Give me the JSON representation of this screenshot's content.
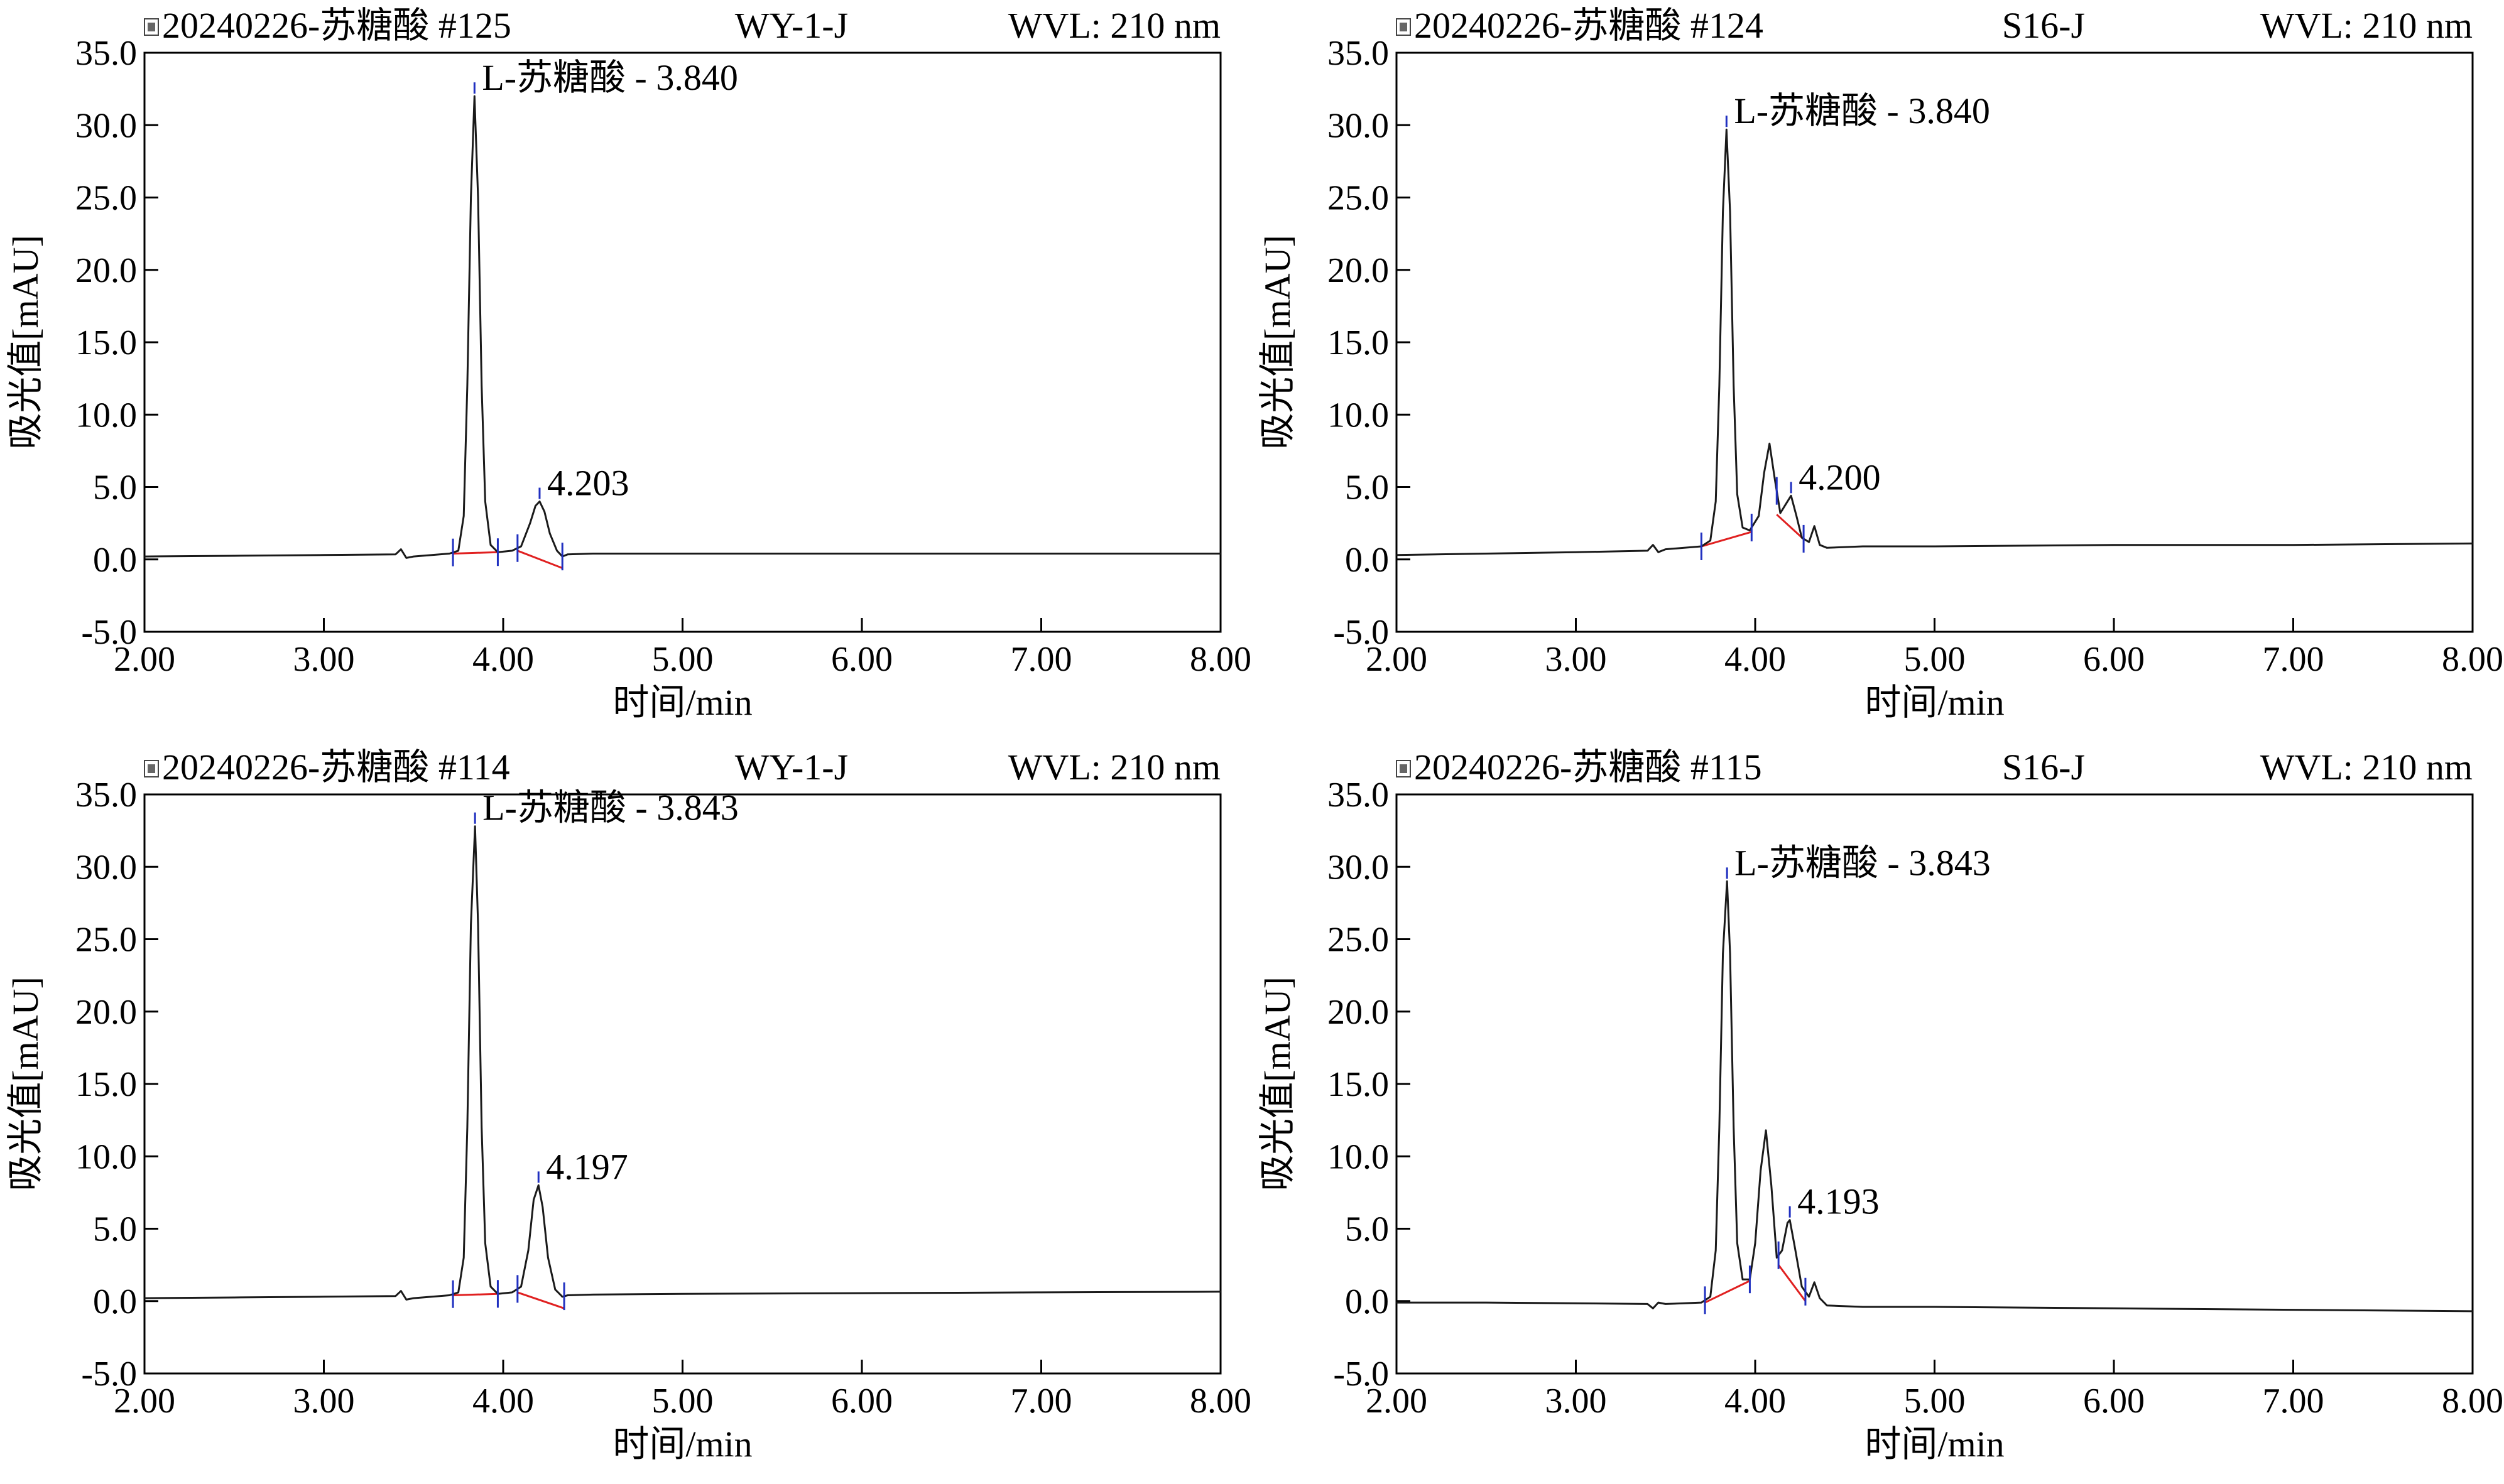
{
  "figure": {
    "panels": [
      {
        "header": {
          "run": "20240226-苏糖酸 #125",
          "sample": "WY-1-J",
          "wavelength": "WVL: 210 nm"
        },
        "peak_labels": [
          {
            "text": "L-苏糖酸 - 3.840",
            "time": 3.84,
            "height": 32.0
          },
          {
            "text": "4.203",
            "time": 4.203,
            "height": 4.0
          }
        ]
      },
      {
        "header": {
          "run": "20240226-苏糖酸 #124",
          "sample": "S16-J",
          "wavelength": "WVL: 210 nm"
        },
        "peak_labels": [
          {
            "text": "L-苏糖酸 - 3.840",
            "time": 3.84,
            "height": 29.7
          },
          {
            "text": "4.200",
            "time": 4.2,
            "height": 4.4
          }
        ]
      },
      {
        "header": {
          "run": "20240226-苏糖酸 #114",
          "sample": "WY-1-J",
          "wavelength": "WVL: 210 nm"
        },
        "peak_labels": [
          {
            "text": "L-苏糖酸 - 3.843",
            "time": 3.843,
            "height": 32.8
          },
          {
            "text": "4.197",
            "time": 4.197,
            "height": 8.0
          }
        ]
      },
      {
        "header": {
          "run": "20240226-苏糖酸 #115",
          "sample": "S16-J",
          "wavelength": "WVL: 210 nm"
        },
        "peak_labels": [
          {
            "text": "L-苏糖酸 - 3.843",
            "time": 3.843,
            "height": 29.0
          },
          {
            "text": "4.193",
            "time": 4.193,
            "height": 5.6
          }
        ]
      }
    ]
  },
  "chart_data": [
    {
      "type": "line",
      "title": "20240226-苏糖酸 #125",
      "subtitle": "WY-1-J",
      "annotation": "WVL: 210 nm",
      "xlabel": "时间/min",
      "ylabel": "吸光值[mAU]",
      "xlim": [
        2.0,
        8.0
      ],
      "ylim": [
        -5.0,
        35.0
      ],
      "xticks": [
        "2.00",
        "3.00",
        "4.00",
        "5.00",
        "6.00",
        "7.00",
        "8.00"
      ],
      "yticks": [
        "-5.0",
        "0.0",
        "5.0",
        "10.0",
        "15.0",
        "20.0",
        "25.0",
        "30.0",
        "35.0"
      ],
      "grid": false,
      "colors": {
        "trace": "#1a1a1a",
        "baseline": "#e02020",
        "marker": "#2030c0"
      },
      "series": [
        {
          "values": [
            [
              2.0,
              0.2
            ],
            [
              2.5,
              0.25
            ],
            [
              3.0,
              0.3
            ],
            [
              3.4,
              0.35
            ],
            [
              3.43,
              0.7
            ],
            [
              3.46,
              0.1
            ],
            [
              3.5,
              0.2
            ],
            [
              3.7,
              0.4
            ],
            [
              3.75,
              0.6
            ],
            [
              3.78,
              3.0
            ],
            [
              3.8,
              12.0
            ],
            [
              3.82,
              25.0
            ],
            [
              3.84,
              32.0
            ],
            [
              3.86,
              25.0
            ],
            [
              3.88,
              12.0
            ],
            [
              3.9,
              4.0
            ],
            [
              3.93,
              1.0
            ],
            [
              3.97,
              0.5
            ],
            [
              4.05,
              0.6
            ],
            [
              4.1,
              0.9
            ],
            [
              4.15,
              2.5
            ],
            [
              4.18,
              3.7
            ],
            [
              4.203,
              4.0
            ],
            [
              4.23,
              3.3
            ],
            [
              4.26,
              1.8
            ],
            [
              4.3,
              0.6
            ],
            [
              4.33,
              0.2
            ],
            [
              4.36,
              0.35
            ],
            [
              4.5,
              0.4
            ],
            [
              5.0,
              0.4
            ],
            [
              6.0,
              0.4
            ],
            [
              7.0,
              0.4
            ],
            [
              8.0,
              0.4
            ]
          ]
        }
      ],
      "peaks": [
        {
          "label": "L-苏糖酸 - 3.840",
          "time": 3.84,
          "height": 32.0
        },
        {
          "label": "4.203",
          "time": 4.203,
          "height": 4.0
        }
      ],
      "baseline_segments": [
        {
          "start": [
            3.72,
            0.4
          ],
          "end": [
            3.97,
            0.5
          ]
        },
        {
          "start": [
            4.08,
            0.6
          ],
          "end": [
            4.33,
            -0.6
          ]
        }
      ],
      "markers": [
        3.72,
        3.97,
        4.08,
        4.33
      ]
    },
    {
      "type": "line",
      "title": "20240226-苏糖酸 #124",
      "subtitle": "S16-J",
      "annotation": "WVL: 210 nm",
      "xlabel": "时间/min",
      "ylabel": "吸光值[mAU]",
      "xlim": [
        2.0,
        8.0
      ],
      "ylim": [
        -5.0,
        35.0
      ],
      "xticks": [
        "2.00",
        "3.00",
        "4.00",
        "5.00",
        "6.00",
        "7.00",
        "8.00"
      ],
      "yticks": [
        "-5.0",
        "0.0",
        "5.0",
        "10.0",
        "15.0",
        "20.0",
        "25.0",
        "30.0",
        "35.0"
      ],
      "grid": false,
      "colors": {
        "trace": "#1a1a1a",
        "baseline": "#e02020",
        "marker": "#2030c0"
      },
      "series": [
        {
          "values": [
            [
              2.0,
              0.3
            ],
            [
              2.5,
              0.4
            ],
            [
              3.0,
              0.5
            ],
            [
              3.4,
              0.6
            ],
            [
              3.43,
              1.0
            ],
            [
              3.46,
              0.5
            ],
            [
              3.5,
              0.7
            ],
            [
              3.7,
              0.9
            ],
            [
              3.75,
              1.3
            ],
            [
              3.78,
              4.0
            ],
            [
              3.8,
              12.0
            ],
            [
              3.82,
              24.0
            ],
            [
              3.84,
              29.7
            ],
            [
              3.86,
              24.0
            ],
            [
              3.88,
              12.0
            ],
            [
              3.9,
              4.5
            ],
            [
              3.93,
              2.2
            ],
            [
              3.97,
              2.0
            ],
            [
              4.02,
              3.0
            ],
            [
              4.05,
              6.0
            ],
            [
              4.08,
              8.0
            ],
            [
              4.11,
              5.5
            ],
            [
              4.14,
              3.2
            ],
            [
              4.17,
              3.8
            ],
            [
              4.2,
              4.4
            ],
            [
              4.23,
              3.0
            ],
            [
              4.26,
              1.5
            ],
            [
              4.3,
              1.2
            ],
            [
              4.33,
              2.3
            ],
            [
              4.36,
              1.0
            ],
            [
              4.4,
              0.8
            ],
            [
              4.6,
              0.9
            ],
            [
              5.0,
              0.9
            ],
            [
              6.0,
              1.0
            ],
            [
              7.0,
              1.0
            ],
            [
              8.0,
              1.1
            ]
          ]
        }
      ],
      "peaks": [
        {
          "label": "L-苏糖酸 - 3.840",
          "time": 3.84,
          "height": 29.7
        },
        {
          "label": "4.200",
          "time": 4.2,
          "height": 4.4
        }
      ],
      "baseline_segments": [
        {
          "start": [
            3.7,
            0.9
          ],
          "end": [
            3.98,
            1.9
          ]
        },
        {
          "start": [
            4.12,
            3.1
          ],
          "end": [
            4.27,
            1.4
          ]
        }
      ],
      "markers": [
        3.7,
        3.98,
        4.12,
        4.27
      ]
    },
    {
      "type": "line",
      "title": "20240226-苏糖酸 #114",
      "subtitle": "WY-1-J",
      "annotation": "WVL: 210 nm",
      "xlabel": "时间/min",
      "ylabel": "吸光值[mAU]",
      "xlim": [
        2.0,
        8.0
      ],
      "ylim": [
        -5.0,
        35.0
      ],
      "xticks": [
        "2.00",
        "3.00",
        "4.00",
        "5.00",
        "6.00",
        "7.00",
        "8.00"
      ],
      "yticks": [
        "-5.0",
        "0.0",
        "5.0",
        "10.0",
        "15.0",
        "20.0",
        "25.0",
        "30.0",
        "35.0"
      ],
      "grid": false,
      "colors": {
        "trace": "#1a1a1a",
        "baseline": "#e02020",
        "marker": "#2030c0"
      },
      "series": [
        {
          "values": [
            [
              2.0,
              0.2
            ],
            [
              2.5,
              0.25
            ],
            [
              3.0,
              0.3
            ],
            [
              3.4,
              0.35
            ],
            [
              3.43,
              0.7
            ],
            [
              3.46,
              0.1
            ],
            [
              3.5,
              0.2
            ],
            [
              3.7,
              0.4
            ],
            [
              3.75,
              0.6
            ],
            [
              3.78,
              3.0
            ],
            [
              3.8,
              12.0
            ],
            [
              3.82,
              26.0
            ],
            [
              3.843,
              32.8
            ],
            [
              3.86,
              26.0
            ],
            [
              3.88,
              12.0
            ],
            [
              3.9,
              4.0
            ],
            [
              3.93,
              1.0
            ],
            [
              3.97,
              0.5
            ],
            [
              4.05,
              0.6
            ],
            [
              4.1,
              1.0
            ],
            [
              4.14,
              3.5
            ],
            [
              4.17,
              7.0
            ],
            [
              4.197,
              8.0
            ],
            [
              4.22,
              6.5
            ],
            [
              4.25,
              3.0
            ],
            [
              4.29,
              0.8
            ],
            [
              4.33,
              0.3
            ],
            [
              4.36,
              0.4
            ],
            [
              4.5,
              0.45
            ],
            [
              5.0,
              0.5
            ],
            [
              6.0,
              0.55
            ],
            [
              7.0,
              0.6
            ],
            [
              8.0,
              0.65
            ]
          ]
        }
      ],
      "peaks": [
        {
          "label": "L-苏糖酸 - 3.843",
          "time": 3.843,
          "height": 32.8
        },
        {
          "label": "4.197",
          "time": 4.197,
          "height": 8.0
        }
      ],
      "baseline_segments": [
        {
          "start": [
            3.72,
            0.4
          ],
          "end": [
            3.97,
            0.5
          ]
        },
        {
          "start": [
            4.08,
            0.6
          ],
          "end": [
            4.34,
            -0.5
          ]
        }
      ],
      "markers": [
        3.72,
        3.97,
        4.08,
        4.34
      ]
    },
    {
      "type": "line",
      "title": "20240226-苏糖酸 #115",
      "subtitle": "S16-J",
      "annotation": "WVL: 210 nm",
      "xlabel": "时间/min",
      "ylabel": "吸光值[mAU]",
      "xlim": [
        2.0,
        8.0
      ],
      "ylim": [
        -5.0,
        35.0
      ],
      "xticks": [
        "2.00",
        "3.00",
        "4.00",
        "5.00",
        "6.00",
        "7.00",
        "8.00"
      ],
      "yticks": [
        "-5.0",
        "0.0",
        "5.0",
        "10.0",
        "15.0",
        "20.0",
        "25.0",
        "30.0",
        "35.0"
      ],
      "grid": false,
      "colors": {
        "trace": "#1a1a1a",
        "baseline": "#e02020",
        "marker": "#2030c0"
      },
      "series": [
        {
          "values": [
            [
              2.0,
              -0.1
            ],
            [
              2.5,
              -0.1
            ],
            [
              3.0,
              -0.15
            ],
            [
              3.4,
              -0.2
            ],
            [
              3.43,
              -0.5
            ],
            [
              3.46,
              -0.1
            ],
            [
              3.5,
              -0.2
            ],
            [
              3.7,
              -0.1
            ],
            [
              3.75,
              0.3
            ],
            [
              3.78,
              3.5
            ],
            [
              3.8,
              12.0
            ],
            [
              3.82,
              24.0
            ],
            [
              3.843,
              29.0
            ],
            [
              3.86,
              24.0
            ],
            [
              3.88,
              12.0
            ],
            [
              3.9,
              4.0
            ],
            [
              3.93,
              1.5
            ],
            [
              3.97,
              1.5
            ],
            [
              4.0,
              4.0
            ],
            [
              4.03,
              9.0
            ],
            [
              4.06,
              11.8
            ],
            [
              4.09,
              8.0
            ],
            [
              4.12,
              3.0
            ],
            [
              4.15,
              3.5
            ],
            [
              4.18,
              5.4
            ],
            [
              4.193,
              5.6
            ],
            [
              4.22,
              3.8
            ],
            [
              4.26,
              1.0
            ],
            [
              4.3,
              0.3
            ],
            [
              4.33,
              1.3
            ],
            [
              4.36,
              0.2
            ],
            [
              4.4,
              -0.3
            ],
            [
              4.6,
              -0.4
            ],
            [
              5.0,
              -0.4
            ],
            [
              6.0,
              -0.5
            ],
            [
              7.0,
              -0.6
            ],
            [
              8.0,
              -0.7
            ]
          ]
        }
      ],
      "peaks": [
        {
          "label": "L-苏糖酸 - 3.843",
          "time": 3.843,
          "height": 29.0
        },
        {
          "label": "4.193",
          "time": 4.193,
          "height": 5.6
        }
      ],
      "baseline_segments": [
        {
          "start": [
            3.72,
            -0.1
          ],
          "end": [
            3.97,
            1.4
          ]
        },
        {
          "start": [
            4.13,
            2.5
          ],
          "end": [
            4.28,
            0.0
          ]
        }
      ],
      "markers": [
        3.72,
        3.97,
        4.13,
        4.28
      ]
    }
  ]
}
